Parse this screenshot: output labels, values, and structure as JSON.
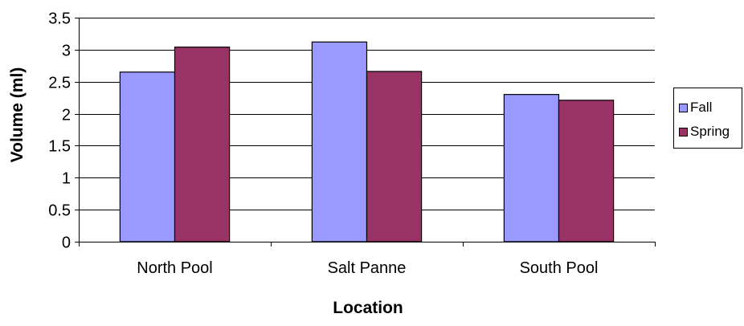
{
  "chart_data": {
    "type": "bar",
    "categories": [
      "North Pool",
      "Salt Panne",
      "South Pool"
    ],
    "series": [
      {
        "name": "Fall",
        "values": [
          2.65,
          3.12,
          2.3
        ],
        "color": "#9999FF"
      },
      {
        "name": "Spring",
        "values": [
          3.04,
          2.66,
          2.21
        ],
        "color": "#993366"
      }
    ],
    "title": "",
    "xlabel": "Location",
    "ylabel": "Volume (ml)",
    "ylim": [
      0,
      3.5
    ],
    "yticks": [
      "0",
      "0.5",
      "1",
      "1.5",
      "2",
      "2.5",
      "3",
      "3.5"
    ],
    "grid": "horizontal",
    "legend_position": "right"
  }
}
